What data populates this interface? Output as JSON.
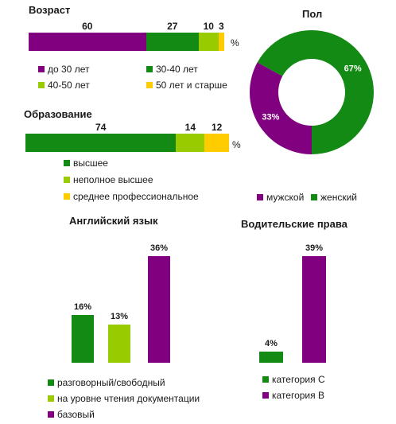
{
  "colors": {
    "purple": "#800080",
    "green": "#138a13",
    "light_green": "#99cc00",
    "yellow": "#ffcc00"
  },
  "chart_data": [
    {
      "type": "bar",
      "orientation": "horizontal-stacked",
      "title": "Возраст",
      "unit": "%",
      "categories": [
        "до 30 лет",
        "30-40 лет",
        "40-50 лет",
        "50 лет и старше"
      ],
      "values": [
        60,
        27,
        10,
        3
      ],
      "value_labels": [
        "60",
        "27",
        "10",
        "3"
      ],
      "colors": [
        "#800080",
        "#138a13",
        "#99cc00",
        "#ffcc00"
      ]
    },
    {
      "type": "bar",
      "orientation": "horizontal-stacked",
      "title": "Образование",
      "unit": "%",
      "categories": [
        "высшее",
        "неполное высшее",
        "среднее профессиональное"
      ],
      "values": [
        74,
        14,
        12
      ],
      "value_labels": [
        "74",
        "14",
        "12"
      ],
      "colors": [
        "#138a13",
        "#99cc00",
        "#ffcc00"
      ]
    },
    {
      "type": "pie",
      "variant": "donut",
      "title": "Пол",
      "categories": [
        "мужской",
        "женский"
      ],
      "values": [
        33,
        67
      ],
      "value_labels": [
        "33%",
        "67%"
      ],
      "colors": [
        "#800080",
        "#138a13"
      ]
    },
    {
      "type": "bar",
      "title": "Английский язык",
      "categories": [
        "разговорный/свободный",
        "на уровне чтения документации",
        "базовый"
      ],
      "values": [
        16,
        13,
        36
      ],
      "value_labels": [
        "16%",
        "13%",
        "36%"
      ],
      "colors": [
        "#138a13",
        "#99cc00",
        "#800080"
      ]
    },
    {
      "type": "bar",
      "title": "Водительские права",
      "categories": [
        "категория C",
        "категория B"
      ],
      "values": [
        4,
        39
      ],
      "value_labels": [
        "4%",
        "39%"
      ],
      "colors": [
        "#138a13",
        "#800080"
      ]
    }
  ]
}
